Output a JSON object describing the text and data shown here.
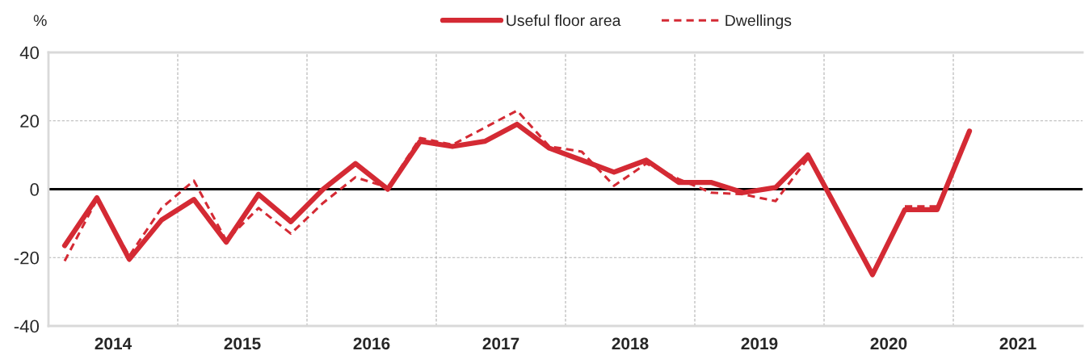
{
  "chart_data": {
    "type": "line",
    "ylabel": "%",
    "legend": "top",
    "grid": true,
    "x": [
      2014.125,
      2014.375,
      2014.625,
      2014.875,
      2015.125,
      2015.375,
      2015.625,
      2015.875,
      2016.125,
      2016.375,
      2016.625,
      2016.875,
      2017.125,
      2017.375,
      2017.625,
      2017.875,
      2018.125,
      2018.375,
      2018.625,
      2018.875,
      2019.125,
      2019.375,
      2019.625,
      2019.875,
      2020.125,
      2020.375,
      2020.625,
      2020.875,
      2021.125
    ],
    "xlim": [
      2014,
      2022
    ],
    "xticks": [
      {
        "value": 2014.5,
        "label": "2014"
      },
      {
        "value": 2015.5,
        "label": "2015"
      },
      {
        "value": 2016.5,
        "label": "2016"
      },
      {
        "value": 2017.5,
        "label": "2017"
      },
      {
        "value": 2018.5,
        "label": "2018"
      },
      {
        "value": 2019.5,
        "label": "2019"
      },
      {
        "value": 2020.5,
        "label": "2020"
      },
      {
        "value": 2021.5,
        "label": "2021"
      },
      {
        "value": 2015,
        "label": null
      },
      {
        "value": 2016,
        "label": null
      },
      {
        "value": 2017,
        "label": null
      },
      {
        "value": 2018,
        "label": null
      },
      {
        "value": 2019,
        "label": null
      },
      {
        "value": 2020,
        "label": null
      },
      {
        "value": 2021,
        "label": null
      }
    ],
    "ylim": [
      -40,
      40
    ],
    "yticks": [
      -40,
      -20,
      0,
      20,
      40
    ],
    "ref_lines": [
      {
        "axis": "y",
        "value": 0,
        "color": "#000000"
      }
    ],
    "series": [
      {
        "name": "Useful floor area",
        "color": "#d42a34",
        "line_style": "solid",
        "values": [
          -16.5,
          -2.5,
          -20.5,
          -9,
          -3,
          -15.5,
          -1.5,
          -9.5,
          0,
          7.5,
          0,
          14,
          12.5,
          14,
          19,
          12,
          8.5,
          5,
          8.5,
          2,
          2,
          -1,
          0.5,
          10,
          -7.5,
          -25,
          -6,
          -6,
          17
        ]
      },
      {
        "name": "Dwellings",
        "color": "#d42a34",
        "line_style": "dashed",
        "values": [
          -21,
          -3,
          -19.5,
          -5.5,
          2.5,
          -15,
          -5.5,
          -13,
          -4,
          3.5,
          0.5,
          15,
          13,
          18,
          23,
          12.5,
          11,
          1,
          7.5,
          3,
          -1,
          -1.5,
          -3.5,
          9,
          null,
          null,
          -5,
          -5,
          null
        ]
      }
    ]
  }
}
